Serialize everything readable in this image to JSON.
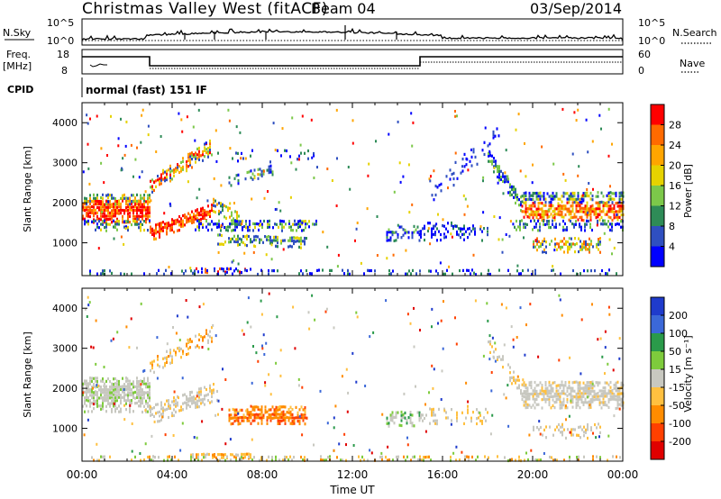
{
  "header": {
    "station": "Christmas Valley West (fitACF)",
    "beam": "Beam 04",
    "date": "03/Sep/2014"
  },
  "status_panels": {
    "nsky_label": "N.Sky",
    "nsky_ticks": [
      "10^5",
      "10^0"
    ],
    "nsearch_label": "N.Search",
    "freq_label_1": "Freq.",
    "freq_label_2": "[MHz]",
    "freq_ticks": [
      "18",
      "8"
    ],
    "nave_label": "Nave",
    "nave_ticks": [
      "60",
      "0"
    ],
    "cpid_label": "CPID",
    "cpid_value": "normal (fast) 151 IF"
  },
  "chart_data": [
    {
      "type": "heatmap",
      "name": "Power",
      "xlabel": "",
      "ylabel": "Slant Range [km]",
      "xlim": [
        0,
        24
      ],
      "ylim": [
        180,
        4500
      ],
      "y_ticks": [
        1000,
        2000,
        3000,
        4000
      ],
      "colorbar_label": "Power [dB]",
      "colorbar_ticks": [
        "28",
        "24",
        "20",
        "16",
        "12",
        "8",
        "4"
      ],
      "colorbar_colors": [
        "#ff0000",
        "#ff6a00",
        "#ffa500",
        "#e6d200",
        "#7cc84a",
        "#2e8b57",
        "#2f4fc0",
        "#0000ff"
      ],
      "clim": [
        0,
        32
      ]
    },
    {
      "type": "heatmap",
      "name": "Velocity",
      "xlabel": "Time UT",
      "ylabel": "Slant Range [km]",
      "xlim": [
        0,
        24
      ],
      "ylim": [
        180,
        4500
      ],
      "x_ticks": [
        "00:00",
        "04:00",
        "08:00",
        "12:00",
        "16:00",
        "20:00",
        "00:00"
      ],
      "y_ticks": [
        1000,
        2000,
        3000,
        4000
      ],
      "colorbar_label": "Velocity [m s⁻¹]",
      "colorbar_ticks": [
        "200",
        "100",
        "50",
        "15",
        "-15",
        "-50",
        "-100",
        "-200"
      ],
      "colorbar_colors": [
        "#1f3bcc",
        "#3b68d8",
        "#2a9a4a",
        "#7ecb3c",
        "#c8c8c0",
        "#ffc040",
        "#ff8c00",
        "#ff4000",
        "#e00000"
      ],
      "clim": [
        -250,
        250
      ]
    }
  ]
}
